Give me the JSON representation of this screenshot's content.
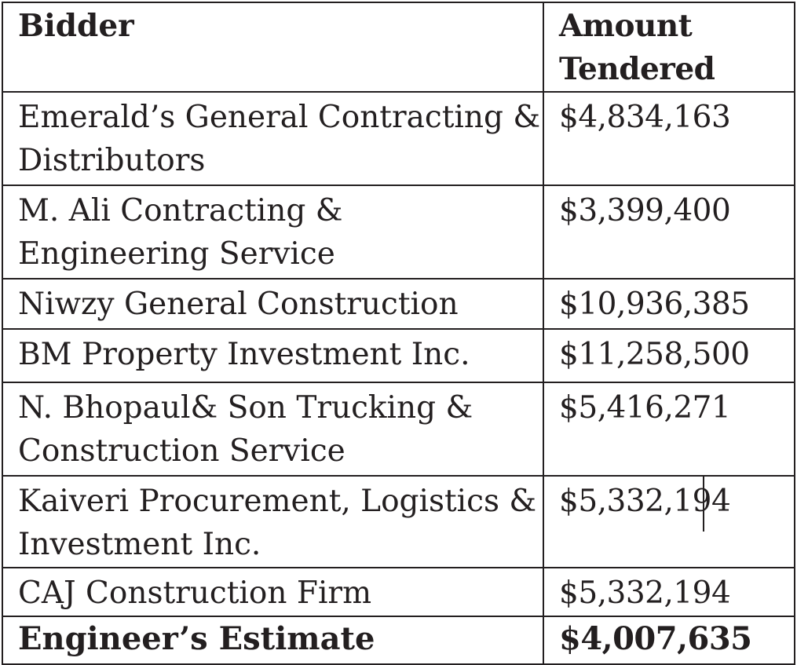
{
  "table": {
    "headers": {
      "bidder": "Bidder",
      "amount": "Amount Tendered"
    },
    "rows": [
      {
        "bidder": "Emerald’s General Contracting & Distributors",
        "amount": "$4,834,163"
      },
      {
        "bidder": "M. Ali Contracting & Engineering Service",
        "amount": "$3,399,400"
      },
      {
        "bidder": "Niwzy General Construction",
        "amount": "$10,936,385"
      },
      {
        "bidder": "BM Property Investment Inc.",
        "amount": "$11,258,500"
      },
      {
        "bidder": "N. Bhopaul& Son Trucking & Construction Service",
        "amount": "$5,416,271"
      },
      {
        "bidder": "Kaiveri Procurement, Logistics & Investment Inc.",
        "amount": "$5,332,194"
      },
      {
        "bidder": "CAJ Construction Firm",
        "amount": "$5,332,194"
      }
    ],
    "total": {
      "bidder": "Engineer’s Estimate",
      "amount": "$4,007,635"
    }
  }
}
